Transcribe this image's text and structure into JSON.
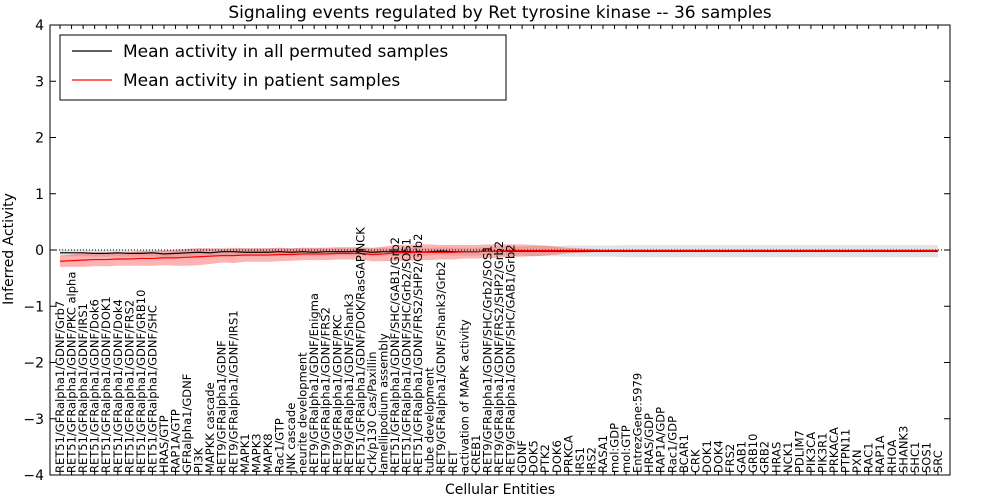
{
  "chart_data": {
    "type": "line",
    "title": "Signaling events regulated by Ret tyrosine kinase -- 36 samples",
    "xlabel": "Cellular Entities",
    "ylabel": "Inferred Activity",
    "ylim": [
      -4,
      4
    ],
    "yticks": [
      "4",
      "3",
      "2",
      "1",
      "0",
      "−1",
      "−2",
      "−3",
      "−4"
    ],
    "ytick_values": [
      4,
      3,
      2,
      1,
      0,
      -1,
      -2,
      -3,
      -4
    ],
    "legend": {
      "position": "top-left",
      "entries": [
        {
          "label": "Mean activity in all permuted samples",
          "color": "#000000"
        },
        {
          "label": "Mean activity in patient samples",
          "color": "#ff0000"
        }
      ]
    },
    "categories": [
      "RET51/GFRalpha1/GDNF/Grb7",
      "RET51/GFRalpha1/GDNF/PKC alpha",
      "RET51/GFRalpha1/GDNF/IRS1",
      "RET51/GFRalpha1/GDNF/Dok6",
      "RET51/GFRalpha1/GDNF/DOK1",
      "RET51/GFRalpha1/GDNF/Dok4",
      "RET51/GFRalpha1/GDNF/FRS2",
      "RET51/GFRalpha1/GDNF/GRB10",
      "RET51/GFRalpha1/GDNF/SHC",
      "HRAS/GTP",
      "RAP1A/GTP",
      "GFRalpha1/GDNF",
      "PI3K",
      "MAPKK cascade",
      "RET9/GFRalpha1/GDNF",
      "RET9/GFRalpha1/GDNF/IRS1",
      "MAPK1",
      "MAPK3",
      "MAPK8",
      "Rac1/GTP",
      "JNK cascade",
      "neurite development",
      "RET9/GFRalpha1/GDNF/Enigma",
      "RET9/GFRalpha1/GDNF/FRS2",
      "RET9/GFRalpha1/GDNF/PKC",
      "RET9/GFRalpha1/GDNF/Shank3",
      "RET51/GFRalpha1/GDNF/DOK/RasGAP/NCK",
      "Crk/p130 Cas/Paxillin",
      "lamellipodium assembly",
      "RET51/GFRalpha1/GDNF/SHC/GAB1/Grb2",
      "RET51/GFRalpha1/GDNF/SHC/Grb2/SOS1",
      "RET51/GFRalpha1/GDNF/FRS2/SHP2/Grb2",
      "tube development",
      "RET9/GFRalpha1/GDNF/Shank3/Grb2",
      "RET",
      "activation of MAPK activity",
      "CREB1",
      "RET9/GFRalpha1/GDNF/SHC/Grb2/SOS1",
      "RET9/GFRalpha1/GDNF/FRS2/SHP2/Grb2",
      "RET9/GFRalpha1/GDNF/SHC/GAB1/Grb2",
      "GDNF",
      "DOK5",
      "PTK2",
      "DOK6",
      "PRKCA",
      "IRS1",
      "IRS2",
      "RASA1",
      "mol:GDP",
      "mol:GTP",
      "EntrezGene:5979",
      "HRAS/GDP",
      "RAP1A/GDP",
      "Rac1/GDP",
      "BCAR1",
      "CRK",
      "DOK1",
      "DOK4",
      "FRS2",
      "GAB1",
      "GRB10",
      "GRB2",
      "HRAS",
      "NCK1",
      "PDLIM7",
      "PIK3CA",
      "PIK3R1",
      "PRKACA",
      "PTPN11",
      "PXN",
      "RAC1",
      "RAP1A",
      "RHOA",
      "SHANK3",
      "SHC1",
      "SOS1",
      "SRC"
    ],
    "series": [
      {
        "name": "Mean activity in all permuted samples",
        "color": "#000000",
        "values": [
          -0.05,
          -0.05,
          -0.05,
          -0.06,
          -0.06,
          -0.05,
          -0.06,
          -0.06,
          -0.05,
          -0.07,
          -0.06,
          -0.05,
          -0.04,
          -0.05,
          -0.03,
          -0.03,
          -0.04,
          -0.04,
          -0.04,
          -0.03,
          -0.04,
          -0.03,
          -0.04,
          -0.03,
          -0.03,
          -0.03,
          -0.02,
          -0.04,
          -0.03,
          -0.03,
          -0.03,
          -0.04,
          -0.03,
          -0.02,
          -0.03,
          -0.03,
          -0.03,
          -0.02,
          -0.02,
          -0.02,
          -0.02,
          -0.02,
          -0.02,
          -0.02,
          -0.02,
          -0.02,
          -0.02,
          -0.02,
          -0.02,
          -0.02,
          -0.02,
          -0.02,
          -0.02,
          -0.02,
          -0.02,
          -0.02,
          -0.02,
          -0.02,
          -0.02,
          -0.02,
          -0.02,
          -0.02,
          -0.02,
          -0.02,
          -0.02,
          -0.02,
          -0.02,
          -0.02,
          -0.02,
          -0.02,
          -0.02,
          -0.02,
          -0.02,
          -0.02,
          -0.02,
          -0.02,
          -0.02
        ],
        "band": [
          0.06,
          0.06,
          0.06,
          0.06,
          0.06,
          0.06,
          0.06,
          0.06,
          0.06,
          0.07,
          0.07,
          0.07,
          0.07,
          0.07,
          0.07,
          0.07,
          0.07,
          0.07,
          0.07,
          0.07,
          0.07,
          0.07,
          0.07,
          0.07,
          0.07,
          0.07,
          0.07,
          0.07,
          0.07,
          0.07,
          0.07,
          0.07,
          0.07,
          0.07,
          0.07,
          0.07,
          0.07,
          0.07,
          0.08,
          0.08,
          0.08,
          0.09,
          0.09,
          0.09,
          0.1,
          0.1,
          0.1,
          0.1,
          0.1,
          0.11,
          0.11,
          0.11,
          0.11,
          0.11,
          0.11,
          0.11,
          0.11,
          0.11,
          0.11,
          0.11,
          0.11,
          0.11,
          0.11,
          0.11,
          0.11,
          0.11,
          0.11,
          0.11,
          0.11,
          0.11,
          0.11,
          0.11,
          0.11,
          0.11,
          0.11,
          0.11,
          0.11
        ]
      },
      {
        "name": "Mean activity in patient samples",
        "color": "#ff0000",
        "values": [
          -0.2,
          -0.19,
          -0.18,
          -0.17,
          -0.17,
          -0.16,
          -0.16,
          -0.15,
          -0.15,
          -0.14,
          -0.14,
          -0.13,
          -0.12,
          -0.11,
          -0.1,
          -0.1,
          -0.09,
          -0.09,
          -0.09,
          -0.08,
          -0.08,
          -0.07,
          -0.07,
          -0.07,
          -0.06,
          -0.06,
          -0.06,
          -0.08,
          -0.07,
          -0.05,
          -0.05,
          -0.04,
          -0.04,
          -0.04,
          -0.04,
          -0.03,
          -0.03,
          -0.02,
          -0.02,
          -0.01,
          -0.01,
          -0.01,
          -0.01,
          -0.01,
          -0.01,
          -0.01,
          -0.01,
          -0.01,
          -0.01,
          -0.01,
          -0.01,
          -0.01,
          -0.01,
          -0.01,
          -0.01,
          -0.01,
          -0.01,
          -0.01,
          -0.01,
          -0.01,
          -0.01,
          -0.01,
          -0.01,
          -0.01,
          -0.01,
          -0.01,
          -0.01,
          -0.01,
          -0.01,
          -0.01,
          -0.01,
          -0.01,
          -0.01,
          -0.01,
          -0.01,
          -0.01,
          -0.01
        ],
        "band": [
          0.1,
          0.11,
          0.12,
          0.12,
          0.12,
          0.12,
          0.12,
          0.13,
          0.13,
          0.13,
          0.14,
          0.15,
          0.15,
          0.14,
          0.12,
          0.13,
          0.12,
          0.12,
          0.12,
          0.12,
          0.11,
          0.11,
          0.11,
          0.11,
          0.11,
          0.11,
          0.11,
          0.12,
          0.13,
          0.14,
          0.14,
          0.14,
          0.14,
          0.13,
          0.13,
          0.12,
          0.12,
          0.12,
          0.12,
          0.11,
          0.11,
          0.1,
          0.09,
          0.07,
          0.05,
          0.04,
          0.03,
          0.02,
          0.02,
          0.02,
          0.02,
          0.02,
          0.02,
          0.02,
          0.02,
          0.02,
          0.02,
          0.02,
          0.02,
          0.02,
          0.02,
          0.02,
          0.02,
          0.02,
          0.02,
          0.02,
          0.02,
          0.02,
          0.02,
          0.02,
          0.02,
          0.02,
          0.02,
          0.02,
          0.02,
          0.02,
          0.02
        ]
      }
    ]
  }
}
